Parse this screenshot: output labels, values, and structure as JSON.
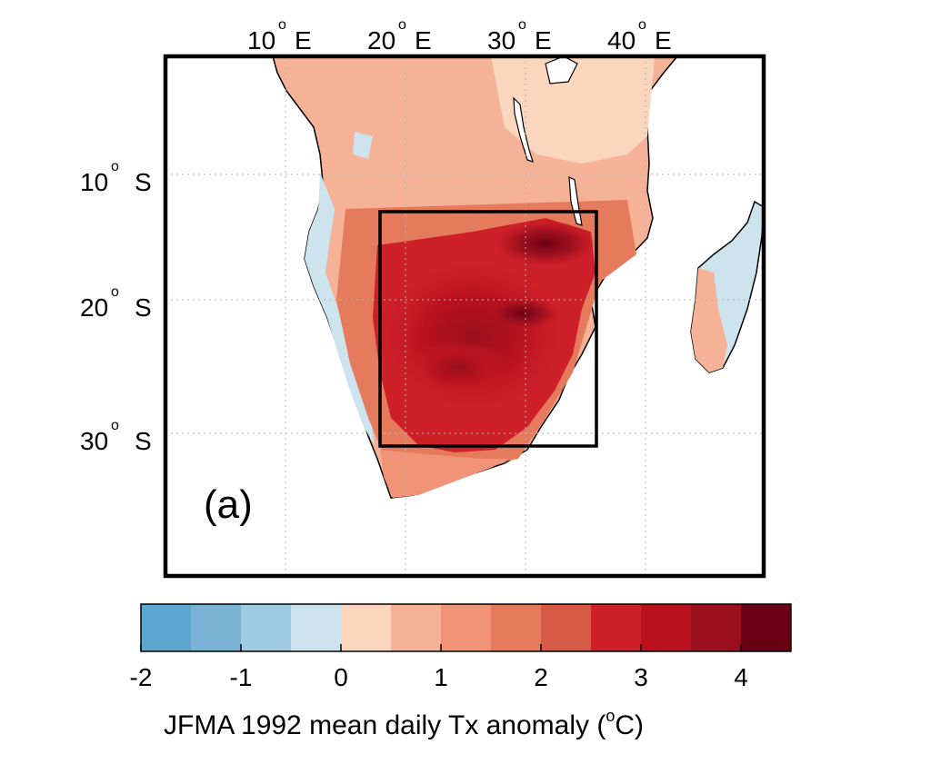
{
  "map": {
    "lon_ticks": [
      {
        "value": 10,
        "deg": "o",
        "suffix": "E"
      },
      {
        "value": 20,
        "deg": "o",
        "suffix": "E"
      },
      {
        "value": 30,
        "deg": "o",
        "suffix": "E"
      },
      {
        "value": 40,
        "deg": "o",
        "suffix": "E"
      }
    ],
    "lat_ticks": [
      {
        "value": 10,
        "deg": "o",
        "suffix": "S"
      },
      {
        "value": 20,
        "deg": "o",
        "suffix": "S"
      },
      {
        "value": 30,
        "deg": "o",
        "suffix": "S"
      }
    ],
    "lon_range": [
      0,
      50
    ],
    "lat_range": [
      -40,
      0
    ],
    "gridlines": true,
    "panel_label": "(a)",
    "study_box": {
      "lon": [
        18,
        36
      ],
      "lat": [
        -31,
        -13
      ]
    }
  },
  "colorbar": {
    "min": -2,
    "max": 4.5,
    "step": 0.5,
    "tick_labels": [
      "-2",
      "-1",
      "0",
      "1",
      "2",
      "3",
      "4"
    ],
    "tick_values": [
      -2,
      -1,
      0,
      1,
      2,
      3,
      4
    ],
    "colors": [
      "#5da6cf",
      "#7ab3d6",
      "#9ecbe2",
      "#cde3ee",
      "#fbd6bf",
      "#f5b296",
      "#f09377",
      "#e57a5d",
      "#d75a47",
      "#cd2029",
      "#b9121e",
      "#9b0f1e",
      "#6b0014"
    ],
    "label_main": "JFMA 1992 mean daily Tx anomaly  (",
    "label_unit_sup": "o",
    "label_unit_tail": "C)"
  },
  "palette": {
    "ocean": "#ffffff",
    "frame": "#000000",
    "grid": "#b5b5b5"
  }
}
